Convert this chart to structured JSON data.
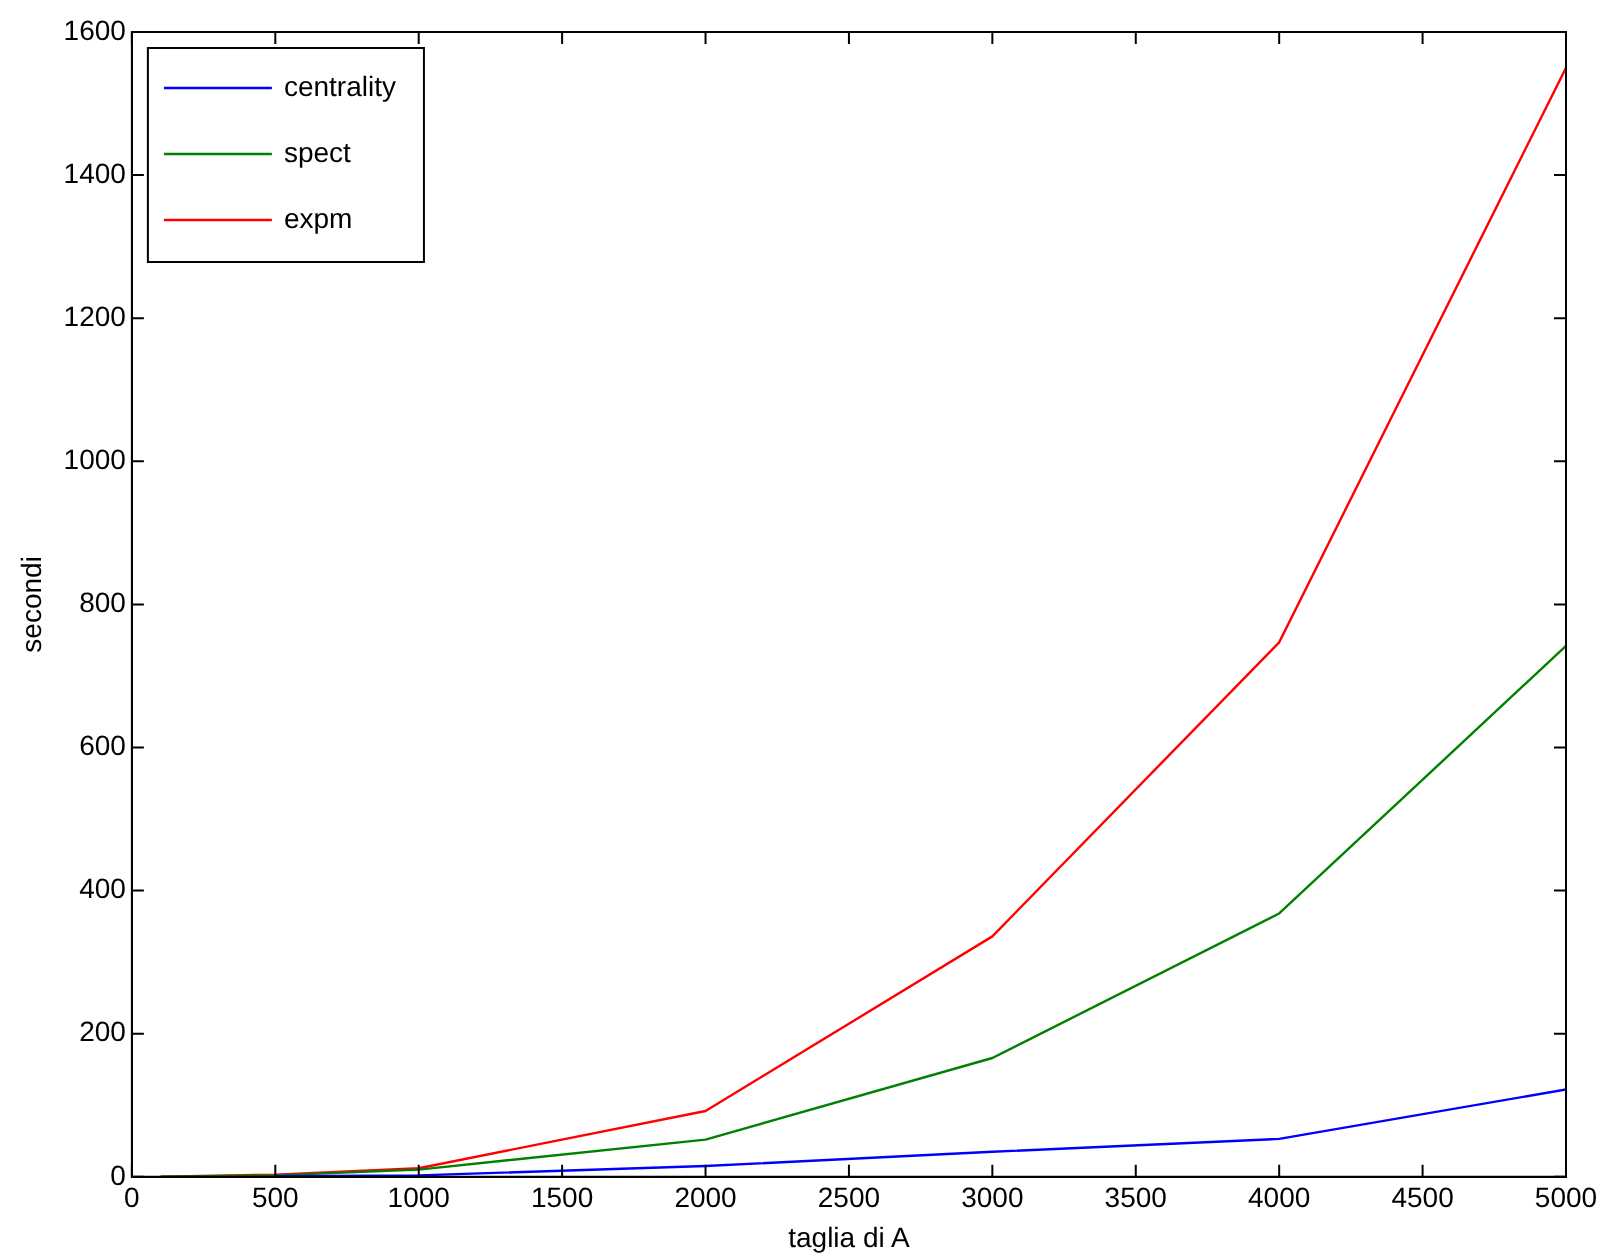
{
  "chart_data": {
    "type": "line",
    "xlabel": "taglia di A",
    "ylabel": "secondi",
    "x": [
      100,
      500,
      1000,
      2000,
      3000,
      4000,
      5000
    ],
    "series": [
      {
        "name": "centrality",
        "color": "#0000ff",
        "values": [
          null,
          1,
          2,
          15,
          35,
          53,
          122
        ]
      },
      {
        "name": "spect",
        "color": "#008000",
        "values": [
          0,
          2,
          10,
          52,
          166,
          368,
          742
        ]
      },
      {
        "name": "expm",
        "color": "#ff0000",
        "values": [
          0,
          3,
          12,
          92,
          336,
          747,
          1550
        ]
      }
    ],
    "xlim": [
      0,
      5000
    ],
    "xticks": [
      0,
      500,
      1000,
      1500,
      2000,
      2500,
      3000,
      3500,
      4000,
      4500,
      5000
    ],
    "ylim": [
      0,
      1600
    ],
    "yticks": [
      0,
      200,
      400,
      600,
      800,
      1000,
      1200,
      1400,
      1600
    ],
    "grid": false,
    "legend": "top left",
    "marker": "none",
    "line_style": "solid"
  }
}
